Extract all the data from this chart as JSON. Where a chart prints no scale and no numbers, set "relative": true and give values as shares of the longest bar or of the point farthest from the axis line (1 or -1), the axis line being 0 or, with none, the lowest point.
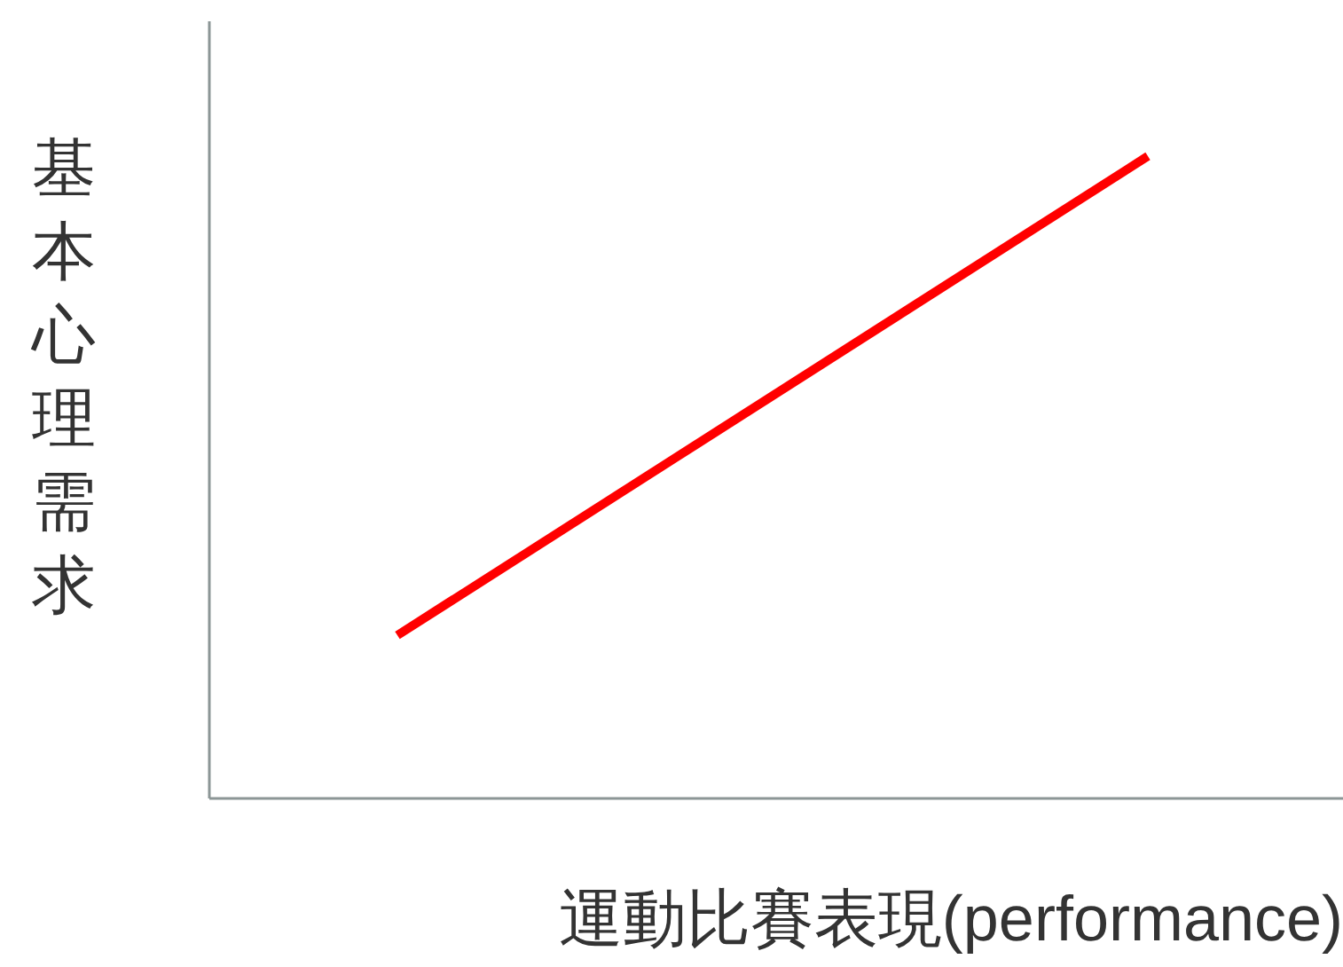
{
  "chart_data": {
    "type": "line",
    "relative": true,
    "xlabel": "運動比賽表現(performance)",
    "ylabel": "基本心理需求",
    "categories": [
      null,
      null
    ],
    "series": [
      {
        "color": "#ff0000",
        "values": [
          0.254,
          1
        ]
      }
    ],
    "marker": "none",
    "grid": false
  }
}
